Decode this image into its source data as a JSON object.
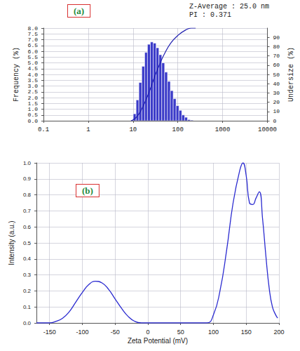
{
  "chart_data": [
    {
      "type": "histogram",
      "title": "(a)",
      "annotations": [
        "Z-Average : 25.0 nm",
        "PI : 0.371"
      ],
      "y_label": "Frequency (%)",
      "y2_label": "Undersize (%)",
      "bins": [
        10.1,
        11.7,
        13.5,
        15.7,
        18.2,
        21.0,
        24.4,
        28.2,
        32.7,
        37.8,
        43.8,
        50.7,
        58.8,
        68.1,
        78.8,
        91.3,
        105.7,
        122.4,
        141.8,
        164.2,
        190.1,
        220.2
      ],
      "counts": [
        0.6,
        1.8,
        3.3,
        4.7,
        5.9,
        6.6,
        6.8,
        6.7,
        6.3,
        5.7,
        5.0,
        4.2,
        3.4,
        2.6,
        1.9,
        1.3,
        0.9,
        0.5,
        0.3,
        0.1,
        0.05
      ],
      "color": "#3a3ac8",
      "series": [
        {
          "type": "line",
          "axis": "y2",
          "color": "#2020b0",
          "x": [
            9,
            10,
            12,
            15,
            20,
            25,
            30,
            40,
            50,
            70,
            100,
            150,
            200,
            250
          ],
          "values": [
            0,
            1,
            4,
            11,
            24,
            36,
            47,
            62,
            72,
            84,
            92,
            98,
            100,
            100
          ]
        }
      ],
      "log": "x",
      "xlim": [
        0.1,
        10000
      ],
      "xticks": [
        0.1,
        1,
        10,
        100,
        1000,
        10000
      ],
      "ylim": [
        0,
        8
      ],
      "yticks": [
        {
          "value": 0,
          "label": "0.0"
        },
        {
          "value": 0.5,
          "label": "0.5"
        },
        {
          "value": 1,
          "label": "1.0"
        },
        {
          "value": 1.5,
          "label": "1.5"
        },
        {
          "value": 2,
          "label": "2.0"
        },
        {
          "value": 2.5,
          "label": "2.5"
        },
        {
          "value": 3,
          "label": "3.0"
        },
        {
          "value": 3.5,
          "label": "3.5"
        },
        {
          "value": 4,
          "label": "4.0"
        },
        {
          "value": 4.5,
          "label": "4.5"
        },
        {
          "value": 5,
          "label": "5.0"
        },
        {
          "value": 5.5,
          "label": "5.5"
        },
        {
          "value": 6,
          "label": "6.0"
        },
        {
          "value": 6.5,
          "label": "6.5"
        },
        {
          "value": 7,
          "label": "7.0"
        },
        {
          "value": 7.5,
          "label": "7.5"
        },
        {
          "value": 8,
          "label": "8.0"
        }
      ],
      "y2lim": [
        0,
        100
      ],
      "y2ticks": [
        0,
        10,
        20,
        30,
        40,
        50,
        60,
        70,
        80,
        90
      ],
      "grid": true
    },
    {
      "type": "line",
      "title": "(b)",
      "x_label": "Zeta Potential (mV)",
      "y_label": "Intensity (a.u.)",
      "x": [
        -170,
        -150,
        -140,
        -130,
        -120,
        -110,
        -100,
        -90,
        -80,
        -70,
        -60,
        -50,
        -40,
        -30,
        -20,
        -10,
        0,
        50,
        90,
        100,
        110,
        120,
        130,
        140,
        145,
        150,
        155,
        160,
        165,
        170,
        175,
        180,
        185,
        190,
        195,
        198
      ],
      "values": [
        0,
        0,
        0.01,
        0.03,
        0.07,
        0.13,
        0.19,
        0.24,
        0.26,
        0.25,
        0.21,
        0.15,
        0.09,
        0.04,
        0.01,
        0,
        0,
        0,
        0,
        0.05,
        0.2,
        0.45,
        0.75,
        0.95,
        1.0,
        0.92,
        0.75,
        0.74,
        0.78,
        0.82,
        0.65,
        0.42,
        0.22,
        0.1,
        0.05,
        0.03
      ],
      "color": "#2a2ad0",
      "xlim": [
        -170,
        200
      ],
      "xticks": [
        -150,
        -100,
        -50,
        0,
        50,
        100,
        150,
        200
      ],
      "ylim": [
        0,
        1
      ],
      "yticks": [
        {
          "value": 0,
          "label": "0.0"
        },
        {
          "value": 0.1,
          "label": "0.1"
        },
        {
          "value": 0.2,
          "label": "0.2"
        },
        {
          "value": 0.3,
          "label": "0.3"
        },
        {
          "value": 0.4,
          "label": "0.4"
        },
        {
          "value": 0.5,
          "label": "0.5"
        },
        {
          "value": 0.6,
          "label": "0.6"
        },
        {
          "value": 0.7,
          "label": "0.7"
        },
        {
          "value": 0.8,
          "label": "0.8"
        },
        {
          "value": 0.9,
          "label": "0.9"
        },
        {
          "value": 1,
          "label": "1.0"
        }
      ],
      "grid": true
    }
  ]
}
